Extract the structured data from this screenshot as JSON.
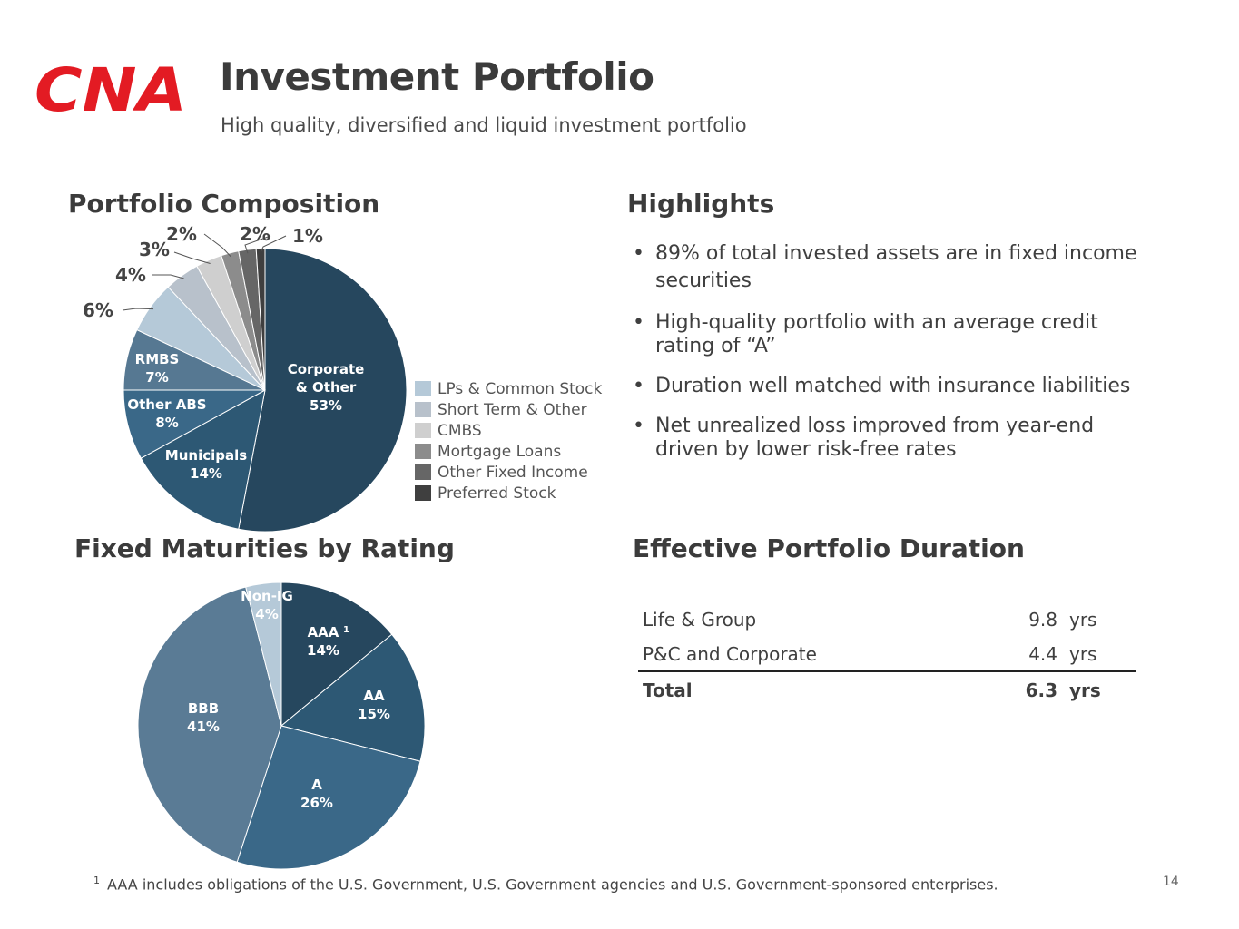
{
  "header": {
    "logo_text": "CNA",
    "title": "Investment Portfolio",
    "subtitle": "High quality, diversified and liquid investment portfolio"
  },
  "sections": {
    "composition_title": "Portfolio Composition",
    "highlights_title": "Highlights",
    "rating_title": "Fixed Maturities by Rating",
    "duration_title": "Effective Portfolio Duration"
  },
  "chart_data": [
    {
      "type": "pie",
      "title": "Portfolio Composition",
      "slices": [
        {
          "name": "Corporate & Other",
          "label_lines": [
            "Corporate",
            "& Other"
          ],
          "value": 53,
          "pct_label": "53%",
          "color": "#26475e",
          "label_style": "inside"
        },
        {
          "name": "Municipals",
          "label_lines": [
            "Municipals"
          ],
          "value": 14,
          "pct_label": "14%",
          "color": "#2d5874",
          "label_style": "inside"
        },
        {
          "name": "Other ABS",
          "label_lines": [
            "Other ABS"
          ],
          "value": 8,
          "pct_label": "8%",
          "color": "#3a6888",
          "label_style": "inside"
        },
        {
          "name": "RMBS",
          "label_lines": [
            "RMBS"
          ],
          "value": 7,
          "pct_label": "7%",
          "color": "#567892",
          "label_style": "inside"
        },
        {
          "name": "LPs & Common Stock",
          "label_lines": [],
          "value": 6,
          "pct_label": "6%",
          "color": "#b5c9d8",
          "label_style": "outside"
        },
        {
          "name": "Short Term & Other",
          "label_lines": [],
          "value": 4,
          "pct_label": "4%",
          "color": "#b8c1cb",
          "label_style": "outside"
        },
        {
          "name": "CMBS",
          "label_lines": [],
          "value": 3,
          "pct_label": "3%",
          "color": "#cfcfcf",
          "label_style": "outside"
        },
        {
          "name": "Mortgage Loans",
          "label_lines": [],
          "value": 2,
          "pct_label": "2%",
          "color": "#8c8c8c",
          "label_style": "outside"
        },
        {
          "name": "Other Fixed Income",
          "label_lines": [],
          "value": 2,
          "pct_label": "2%",
          "color": "#666666",
          "label_style": "outside"
        },
        {
          "name": "Preferred Stock",
          "label_lines": [],
          "value": 1,
          "pct_label": "1%",
          "color": "#3f3f3f",
          "label_style": "outside"
        }
      ],
      "legend": [
        {
          "label": "LPs & Common Stock",
          "color": "#b5c9d8"
        },
        {
          "label": "Short Term & Other",
          "color": "#b8c1cb"
        },
        {
          "label": "CMBS",
          "color": "#cfcfcf"
        },
        {
          "label": "Mortgage Loans",
          "color": "#8c8c8c"
        },
        {
          "label": "Other Fixed Income",
          "color": "#666666"
        },
        {
          "label": "Preferred Stock",
          "color": "#3f3f3f"
        }
      ]
    },
    {
      "type": "pie",
      "title": "Fixed Maturities by Rating",
      "slices": [
        {
          "name": "AAA",
          "label_lines": [
            "AAA"
          ],
          "value": 14,
          "pct_label": "14%",
          "color": "#26475e",
          "footnote_marker": "1"
        },
        {
          "name": "AA",
          "label_lines": [
            "AA"
          ],
          "value": 15,
          "pct_label": "15%",
          "color": "#2d5874"
        },
        {
          "name": "A",
          "label_lines": [
            "A"
          ],
          "value": 26,
          "pct_label": "26%",
          "color": "#3a6888"
        },
        {
          "name": "BBB",
          "label_lines": [
            "BBB"
          ],
          "value": 41,
          "pct_label": "41%",
          "color": "#5a7b95"
        },
        {
          "name": "Non-IG",
          "label_lines": [
            "Non-IG"
          ],
          "value": 4,
          "pct_label": "4%",
          "color": "#b5c9d8"
        }
      ]
    }
  ],
  "highlights": [
    "89% of total invested assets are in fixed income securities",
    "High-quality portfolio with an average credit rating of “A”",
    "Duration well matched with insurance liabilities",
    "Net unrealized loss improved from year-end driven by lower risk-free rates"
  ],
  "duration": {
    "rows": [
      {
        "label": "Life & Group",
        "value": "9.8",
        "unit": "yrs"
      },
      {
        "label": "P&C and Corporate",
        "value": "4.4",
        "unit": "yrs"
      }
    ],
    "total": {
      "label": "Total",
      "value": "6.3",
      "unit": "yrs"
    }
  },
  "footnote": {
    "marker": "1",
    "text": "AAA includes obligations of the U.S. Government, U.S. Government agencies and U.S. Government-sponsored enterprises."
  },
  "page_number": "14",
  "colors": {
    "brand_red": "#e31b23",
    "heading": "#3b3b3b"
  }
}
